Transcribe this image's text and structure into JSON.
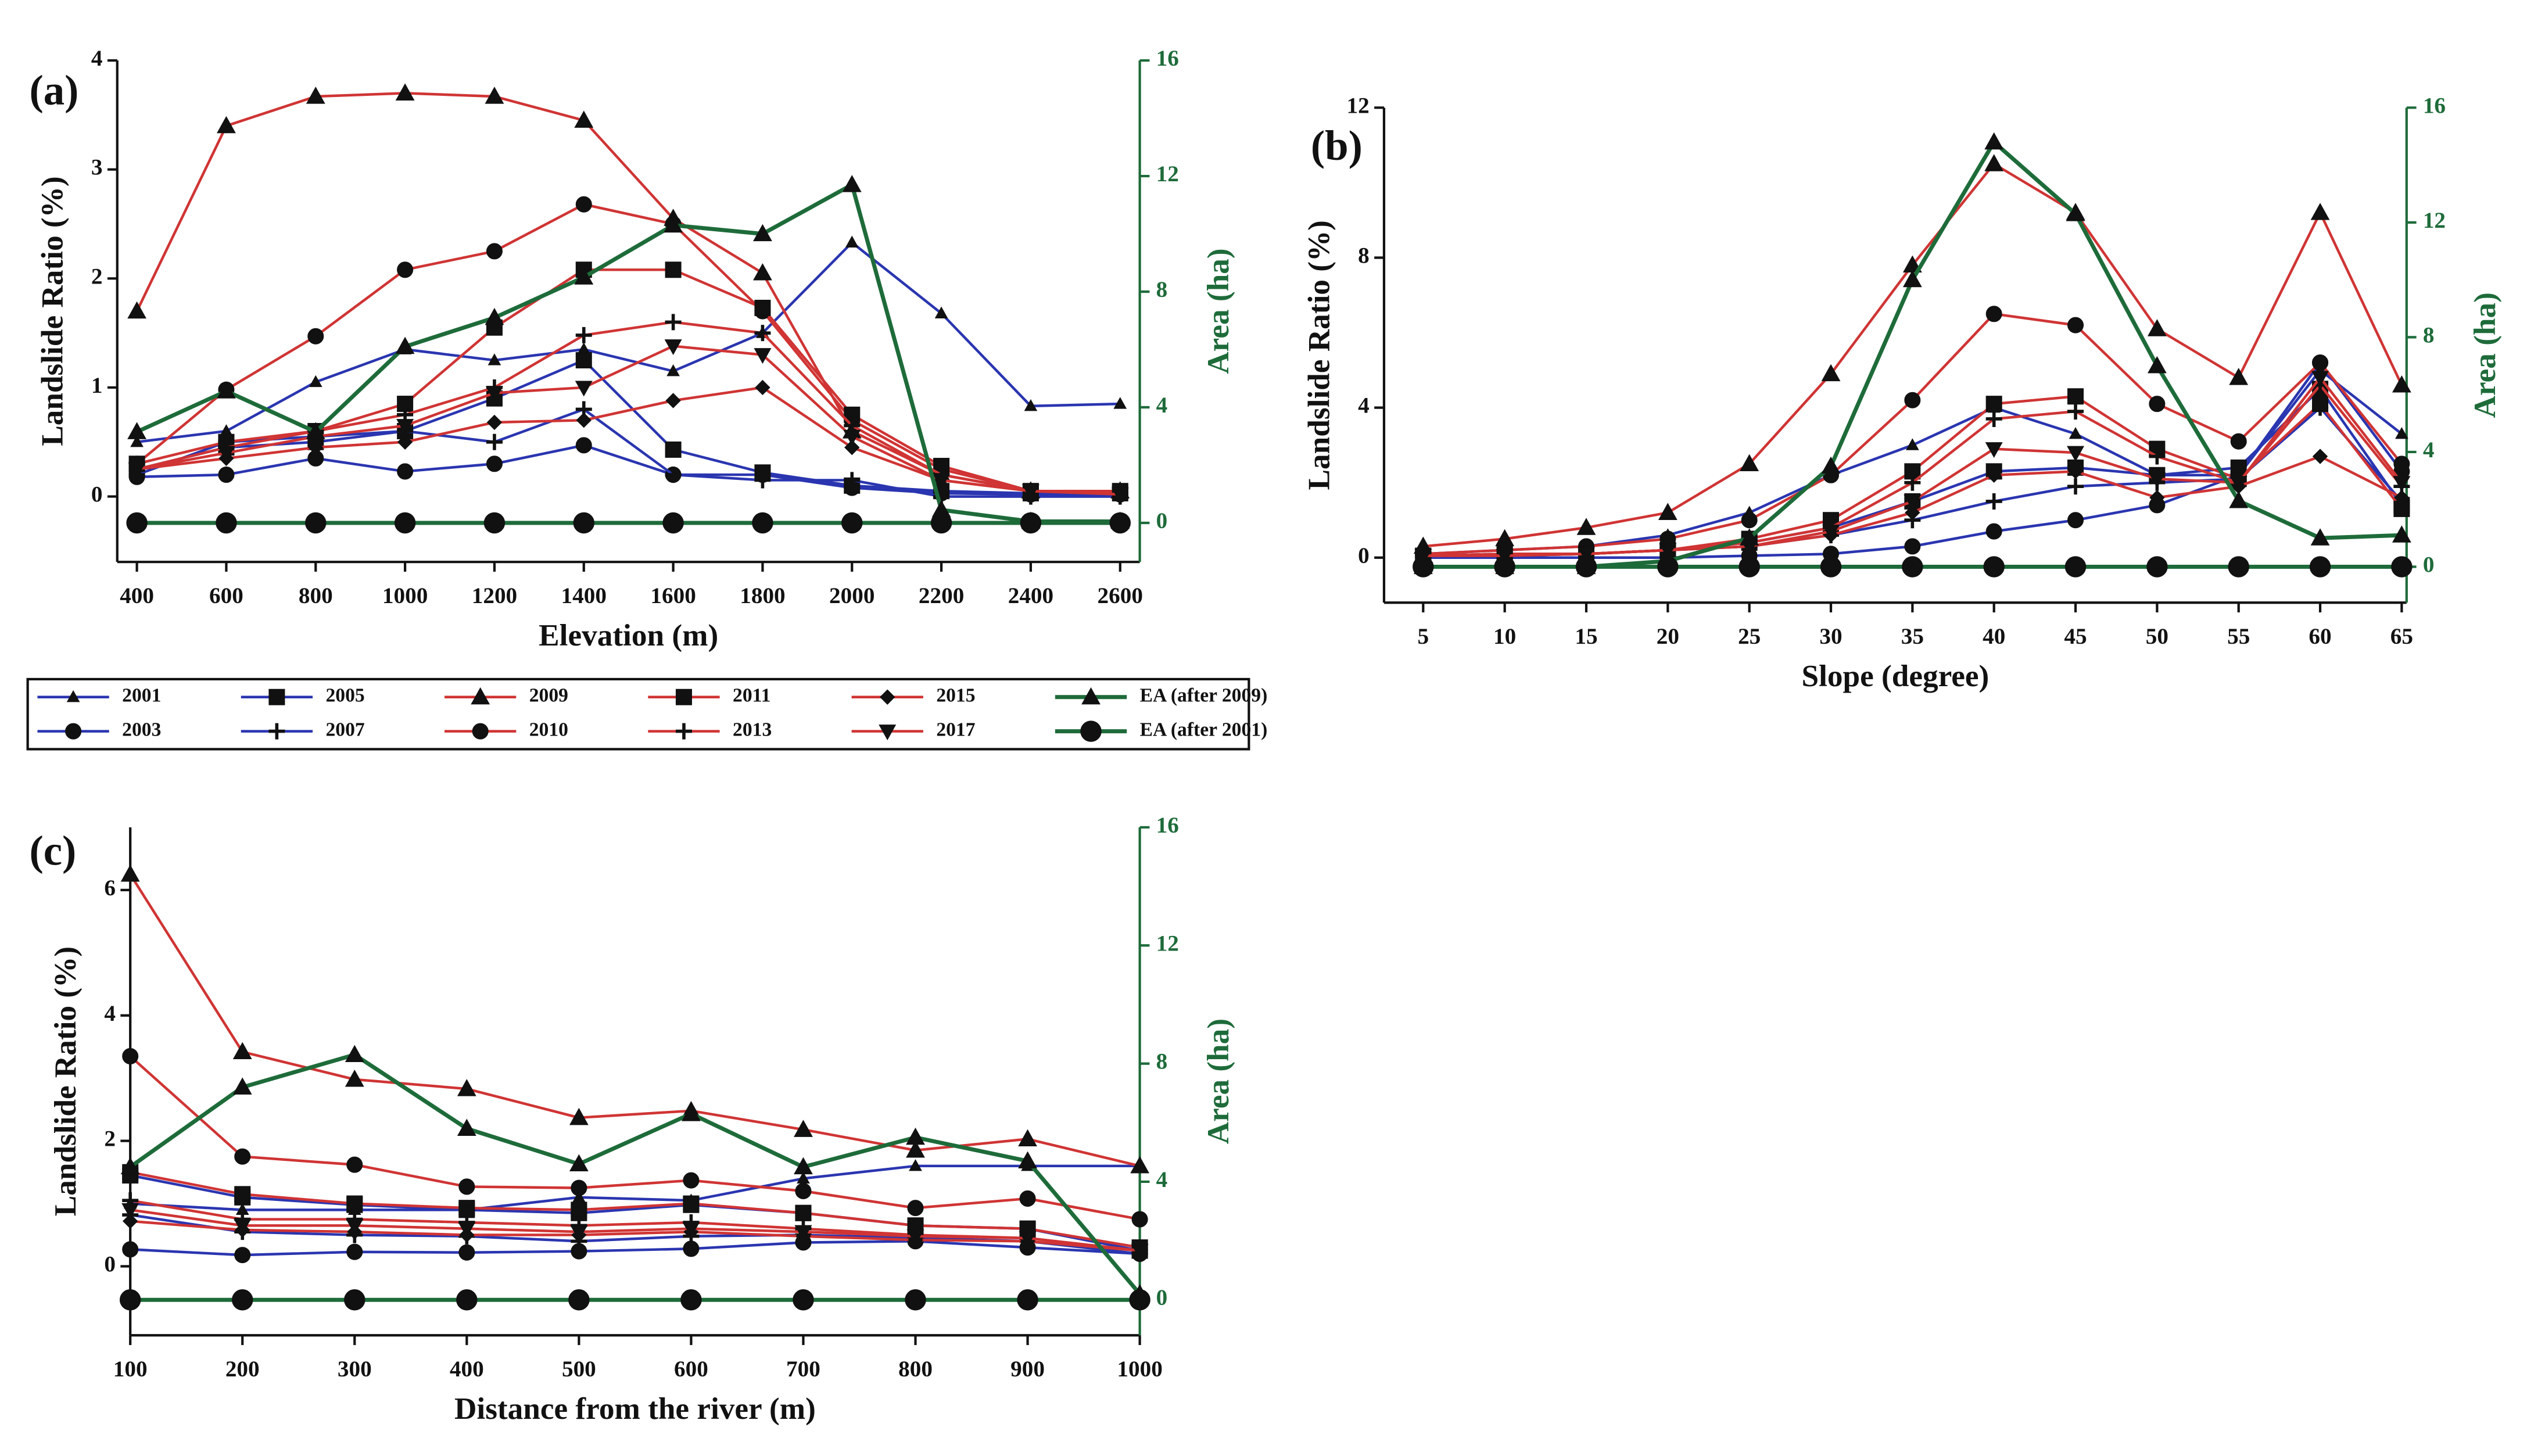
{
  "chart_data": [
    {
      "type": "line",
      "label": "(a)",
      "x_label": "Elevation (m)",
      "y_label": "Landslide Ratio (%)",
      "y2_label": "Area (ha)",
      "y2_color": "#1e6b3a",
      "x": [
        400,
        600,
        800,
        1000,
        1200,
        1400,
        1600,
        1800,
        2000,
        2200,
        2400,
        2600
      ],
      "xlim": [
        356,
        2644
      ],
      "xticks": [
        400,
        600,
        800,
        1000,
        1200,
        1400,
        1600,
        1800,
        2000,
        2200,
        2400,
        2600
      ],
      "ylim": [
        -0.6,
        4
      ],
      "yticks": [
        0,
        1,
        2,
        3,
        4
      ],
      "y2lim": [
        -1.35,
        16
      ],
      "y2ticks": [
        0,
        4,
        8,
        12,
        16
      ],
      "series": [
        {
          "name": "2001",
          "color": "#2a35b0",
          "marker": "small-triangle",
          "values": [
            0.5,
            0.6,
            1.05,
            1.35,
            1.25,
            1.35,
            1.15,
            1.5,
            2.33,
            1.68,
            0.83,
            0.85
          ]
        },
        {
          "name": "2003",
          "color": "#2a35b0",
          "marker": "circle",
          "values": [
            0.18,
            0.2,
            0.35,
            0.23,
            0.3,
            0.47,
            0.2,
            0.2,
            0.08,
            0.03,
            0.02,
            0.02
          ]
        },
        {
          "name": "2005",
          "color": "#2a35b0",
          "marker": "square",
          "values": [
            0.25,
            0.45,
            0.5,
            0.6,
            0.9,
            1.25,
            0.43,
            0.22,
            0.1,
            0.05,
            0.03,
            0.03
          ]
        },
        {
          "name": "2007",
          "color": "#2a35b0",
          "marker": "plus",
          "values": [
            0.2,
            0.5,
            0.55,
            0.6,
            0.5,
            0.8,
            0.2,
            0.15,
            0.15,
            0,
            0,
            0
          ]
        },
        {
          "name": "2009",
          "color": "#d03434",
          "marker": "triangle",
          "values": [
            1.7,
            3.4,
            3.67,
            3.7,
            3.67,
            3.45,
            2.55,
            2.05,
            0.6,
            0.2,
            0.05,
            0.05
          ]
        },
        {
          "name": "2010",
          "color": "#d03434",
          "marker": "circle",
          "values": [
            0.3,
            0.98,
            1.47,
            2.08,
            2.25,
            2.68,
            2.5,
            1.7,
            0.7,
            0.25,
            0.05,
            0.05
          ]
        },
        {
          "name": "2011",
          "color": "#d03434",
          "marker": "square",
          "values": [
            0.3,
            0.5,
            0.6,
            0.85,
            1.55,
            2.08,
            2.08,
            1.73,
            0.75,
            0.28,
            0.05,
            0.05
          ]
        },
        {
          "name": "2013",
          "color": "#d03434",
          "marker": "plus",
          "values": [
            0.25,
            0.45,
            0.6,
            0.75,
            1.0,
            1.48,
            1.6,
            1.5,
            0.65,
            0.2,
            0.05,
            0.03
          ]
        },
        {
          "name": "2015",
          "color": "#d03434",
          "marker": "diamond",
          "values": [
            0.25,
            0.35,
            0.45,
            0.5,
            0.68,
            0.7,
            0.88,
            1.0,
            0.45,
            0.15,
            0.05,
            0.02
          ]
        },
        {
          "name": "2017",
          "color": "#d03434",
          "marker": "down-triangle",
          "values": [
            0.25,
            0.4,
            0.55,
            0.65,
            0.95,
            1.0,
            1.38,
            1.3,
            0.55,
            0.15,
            0.05,
            0.02
          ]
        },
        {
          "name": "EA (after 2009)",
          "color": "#1e6b3a",
          "marker": "triangle",
          "axis": "y2",
          "values": [
            3.15,
            4.56,
            3.15,
            6.1,
            7.1,
            8.5,
            10.3,
            10.0,
            11.7,
            0.45,
            0.05,
            0.05
          ]
        },
        {
          "name": "EA (after 2001)",
          "color": "#1e6b3a",
          "marker": "big-circle",
          "axis": "y2",
          "values": [
            0,
            0,
            0,
            0,
            0,
            0,
            0,
            0,
            0,
            0,
            0,
            0
          ]
        }
      ]
    },
    {
      "type": "line",
      "label": "(b)",
      "x_label": "Slope (degree)",
      "y_label": "Landslide Ratio (%)",
      "y2_label": "Area (ha)",
      "y2_color": "#1e6b3a",
      "x": [
        5,
        10,
        15,
        20,
        25,
        30,
        35,
        40,
        45,
        50,
        55,
        60,
        65
      ],
      "xlim": [
        2.6,
        65.3
      ],
      "xticks": [
        5,
        10,
        15,
        20,
        25,
        30,
        35,
        40,
        45,
        50,
        55,
        60,
        65
      ],
      "ylim": [
        -1.2,
        12
      ],
      "yticks": [
        0,
        4,
        8,
        12
      ],
      "y2lim": [
        -1.25,
        16
      ],
      "y2ticks": [
        0,
        4,
        8,
        12,
        16
      ],
      "series": [
        {
          "name": "2001",
          "color": "#2a35b0",
          "marker": "small-triangle",
          "values": [
            0.1,
            0.2,
            0.3,
            0.6,
            1.2,
            2.2,
            3.0,
            4.0,
            3.3,
            2.2,
            2.2,
            5.0,
            3.3
          ]
        },
        {
          "name": "2003",
          "color": "#2a35b0",
          "marker": "circle",
          "values": [
            0,
            0,
            0,
            0,
            0.05,
            0.1,
            0.3,
            0.7,
            1.0,
            1.4,
            2.2,
            5.2,
            2.3
          ]
        },
        {
          "name": "2005",
          "color": "#2a35b0",
          "marker": "square",
          "values": [
            0.05,
            0.1,
            0.1,
            0.2,
            0.4,
            0.8,
            1.5,
            2.3,
            2.4,
            2.2,
            2.4,
            4.5,
            1.4
          ]
        },
        {
          "name": "2007",
          "color": "#2a35b0",
          "marker": "plus",
          "values": [
            0.05,
            0.05,
            0.1,
            0.2,
            0.3,
            0.6,
            1.0,
            1.5,
            1.9,
            2.0,
            2.1,
            4.0,
            1.5
          ]
        },
        {
          "name": "2009",
          "color": "#d03434",
          "marker": "triangle",
          "values": [
            0.3,
            0.5,
            0.8,
            1.2,
            2.5,
            4.9,
            7.8,
            10.5,
            9.2,
            6.1,
            4.8,
            9.2,
            4.6
          ]
        },
        {
          "name": "2010",
          "color": "#d03434",
          "marker": "circle",
          "values": [
            0.1,
            0.2,
            0.3,
            0.5,
            1.0,
            2.2,
            4.2,
            6.5,
            6.2,
            4.1,
            3.1,
            5.2,
            2.5
          ]
        },
        {
          "name": "2011",
          "color": "#d03434",
          "marker": "square",
          "values": [
            0.05,
            0.1,
            0.1,
            0.2,
            0.5,
            1.0,
            2.3,
            4.1,
            4.3,
            2.9,
            2.1,
            4.1,
            1.3
          ]
        },
        {
          "name": "2013",
          "color": "#d03434",
          "marker": "plus",
          "values": [
            0.05,
            0.1,
            0.1,
            0.2,
            0.4,
            0.8,
            2.0,
            3.7,
            3.9,
            2.7,
            2.0,
            4.6,
            1.9
          ]
        },
        {
          "name": "2015",
          "color": "#d03434",
          "marker": "diamond",
          "values": [
            0.05,
            0.05,
            0.1,
            0.2,
            0.3,
            0.6,
            1.2,
            2.2,
            2.3,
            1.6,
            1.9,
            2.7,
            1.6
          ]
        },
        {
          "name": "2017",
          "color": "#d03434",
          "marker": "down-triangle",
          "values": [
            0.05,
            0.05,
            0.1,
            0.2,
            0.3,
            0.7,
            1.5,
            2.9,
            2.8,
            2.1,
            2.0,
            4.8,
            2.0
          ]
        },
        {
          "name": "EA (after 2009)",
          "color": "#1e6b3a",
          "marker": "triangle",
          "axis": "y2",
          "values": [
            0,
            0,
            0,
            0.2,
            1,
            3.5,
            10,
            14.8,
            12.3,
            7,
            2.3,
            1,
            1.1
          ]
        },
        {
          "name": "EA (after 2001)",
          "color": "#1e6b3a",
          "marker": "big-circle",
          "axis": "y2",
          "values": [
            0,
            0,
            0,
            0,
            0,
            0,
            0,
            0,
            0,
            0,
            0,
            0,
            0
          ]
        }
      ]
    },
    {
      "type": "line",
      "label": "(c)",
      "x_label": "Distance from the river (m)",
      "y_label": "Landslide Ratio (%)",
      "y2_label": "Area (ha)",
      "y2_color": "#1e6b3a",
      "x": [
        100,
        200,
        300,
        400,
        500,
        600,
        700,
        800,
        900,
        1000
      ],
      "xlim": [
        100,
        1000
      ],
      "xticks": [
        100,
        200,
        300,
        400,
        500,
        600,
        700,
        800,
        900,
        1000
      ],
      "ylim": [
        -1.1,
        7
      ],
      "yticks": [
        0,
        2,
        4,
        6
      ],
      "y2lim": [
        -1.2,
        16
      ],
      "y2ticks": [
        0,
        4,
        8,
        12,
        16
      ],
      "series": [
        {
          "name": "2001",
          "color": "#2a35b0",
          "marker": "small-triangle",
          "values": [
            1.0,
            0.9,
            0.9,
            0.9,
            1.1,
            1.05,
            1.4,
            1.6,
            1.6,
            1.6
          ]
        },
        {
          "name": "2003",
          "color": "#2a35b0",
          "marker": "circle",
          "values": [
            0.27,
            0.18,
            0.23,
            0.22,
            0.24,
            0.28,
            0.38,
            0.4,
            0.3,
            0.2
          ]
        },
        {
          "name": "2005",
          "color": "#2a35b0",
          "marker": "square",
          "values": [
            1.45,
            1.1,
            0.98,
            0.9,
            0.85,
            0.98,
            0.85,
            0.65,
            0.6,
            0.25
          ]
        },
        {
          "name": "2007",
          "color": "#2a35b0",
          "marker": "plus",
          "values": [
            0.82,
            0.55,
            0.5,
            0.48,
            0.4,
            0.48,
            0.5,
            0.45,
            0.4,
            0.2
          ]
        },
        {
          "name": "2009",
          "color": "#d03434",
          "marker": "triangle",
          "values": [
            6.25,
            3.42,
            2.98,
            2.83,
            2.37,
            2.48,
            2.18,
            1.85,
            2.03,
            1.6
          ]
        },
        {
          "name": "2010",
          "color": "#d03434",
          "marker": "circle",
          "values": [
            3.35,
            1.75,
            1.62,
            1.27,
            1.25,
            1.37,
            1.2,
            0.93,
            1.08,
            0.75
          ]
        },
        {
          "name": "2011",
          "color": "#d03434",
          "marker": "square",
          "values": [
            1.5,
            1.15,
            1.0,
            0.93,
            0.9,
            1.0,
            0.85,
            0.65,
            0.6,
            0.3
          ]
        },
        {
          "name": "2013",
          "color": "#d03434",
          "marker": "plus",
          "values": [
            1.05,
            0.75,
            0.75,
            0.7,
            0.65,
            0.7,
            0.6,
            0.5,
            0.45,
            0.25
          ]
        },
        {
          "name": "2015",
          "color": "#d03434",
          "marker": "diamond",
          "values": [
            0.72,
            0.58,
            0.55,
            0.5,
            0.5,
            0.55,
            0.48,
            0.42,
            0.4,
            0.25
          ]
        },
        {
          "name": "2017",
          "color": "#d03434",
          "marker": "down-triangle",
          "values": [
            0.9,
            0.65,
            0.65,
            0.6,
            0.55,
            0.6,
            0.55,
            0.48,
            0.45,
            0.25
          ]
        },
        {
          "name": "EA (after 2009)",
          "color": "#1e6b3a",
          "marker": "triangle",
          "axis": "y2",
          "values": [
            4.5,
            7.2,
            8.3,
            5.8,
            4.6,
            6.3,
            4.5,
            5.5,
            4.7,
            0.2
          ]
        },
        {
          "name": "EA (after 2001)",
          "color": "#1e6b3a",
          "marker": "big-circle",
          "axis": "y2",
          "values": [
            0,
            0,
            0,
            0,
            0,
            0,
            0,
            0,
            0,
            0
          ]
        }
      ]
    }
  ]
}
